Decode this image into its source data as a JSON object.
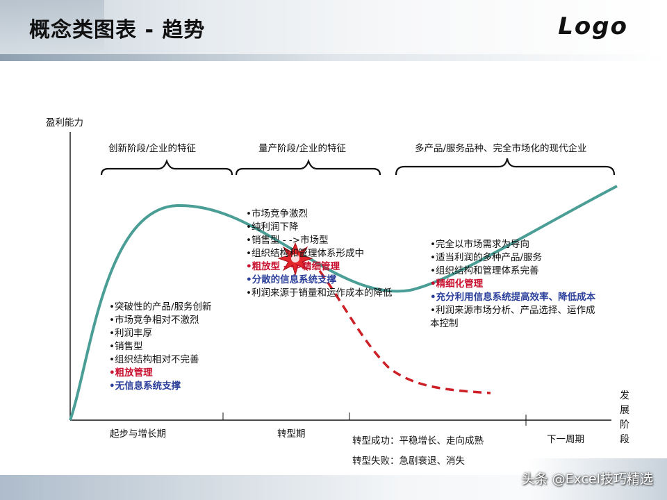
{
  "header": {
    "title": "概念类图表 - 趋势",
    "logo": "Logo"
  },
  "axes": {
    "y_label": "盈利能力",
    "x_label": "发展阶段"
  },
  "phase_headers": [
    "创新阶段/企业的特征",
    "量产阶段/企业的特征",
    "多产品/服务品种、完全市场化的现代企业"
  ],
  "stage1_points": [
    {
      "text": "•突破性的产品/服务创新",
      "style": "normal"
    },
    {
      "text": "•市场竞争相对不激烈",
      "style": "normal"
    },
    {
      "text": "•利润丰厚",
      "style": "normal"
    },
    {
      "text": "•销售型",
      "style": "normal"
    },
    {
      "text": "•组织结构相对不完善",
      "style": "normal"
    },
    {
      "text": "•粗放管理",
      "style": "red"
    },
    {
      "text": "•无信息系统支撑",
      "style": "blue"
    }
  ],
  "stage2_points": [
    {
      "text": "•市场竞争激烈",
      "style": "normal"
    },
    {
      "text": "•纯利润下降",
      "style": "normal"
    },
    {
      "text": "•销售型 - ->市场型",
      "style": "normal"
    },
    {
      "text": "•组织结构和管理体系形成中",
      "style": "normal"
    },
    {
      "text": "•粗放型 - ->精细管理",
      "style": "red"
    },
    {
      "text": "•分散的信息系统支撑",
      "style": "blue"
    },
    {
      "text": "•利润来源于销量和运作成本的降低",
      "style": "normal"
    }
  ],
  "stage3_points": [
    {
      "text": "•完全以市场需求为导向",
      "style": "normal"
    },
    {
      "text": "•适当利润的多种产品/服务",
      "style": "normal"
    },
    {
      "text": "•组织结构和管理体系完善",
      "style": "normal"
    },
    {
      "text": "•精细化管理",
      "style": "red"
    },
    {
      "text": "•充分利用信息系统提高效率、降低成本",
      "style": "blue"
    },
    {
      "text": "•利润来源市场分析、产品选择、运作成",
      "style": "normal"
    },
    {
      "text": "本控制",
      "style": "normal"
    }
  ],
  "x_stages": [
    "起步与增长期",
    "转型期",
    "下一周期"
  ],
  "outcomes": {
    "success": "转型成功：平稳增长、走向成熟",
    "failure": "转型失败：急剧衰退、消失"
  },
  "colors": {
    "curve": "#4a9e96",
    "fail_curve": "#cc1f26",
    "burst": "#e3262c"
  },
  "watermark": "头条 @Excel技巧精选"
}
